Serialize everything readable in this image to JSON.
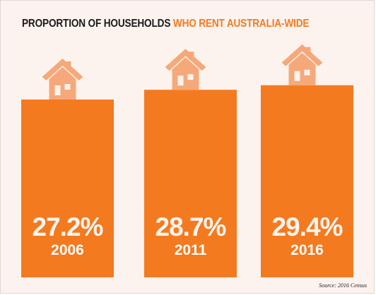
{
  "title": {
    "part1": "PROPORTION OF HOUSEHOLDS",
    "part2": "WHO RENT AUSTRALIA-WIDE"
  },
  "source": "Source: 2016 Census",
  "colors": {
    "background": "#fdf3ee",
    "bar": "#f47a20",
    "bar_highlight": "#ff8a2e",
    "house_icon": "#f5a97a",
    "label_text": "#ffffff",
    "title_dark": "#1a1a1a",
    "title_accent": "#f47a20"
  },
  "chart_data": {
    "type": "bar",
    "title": "PROPORTION OF HOUSEHOLDS WHO RENT AUSTRALIA-WIDE",
    "categories": [
      "2006",
      "2011",
      "2016"
    ],
    "values": [
      27.2,
      28.7,
      29.4
    ],
    "value_labels": [
      "27.2%",
      "28.7%",
      "29.4%"
    ],
    "unit": "%",
    "grid": false,
    "legend": "none"
  }
}
